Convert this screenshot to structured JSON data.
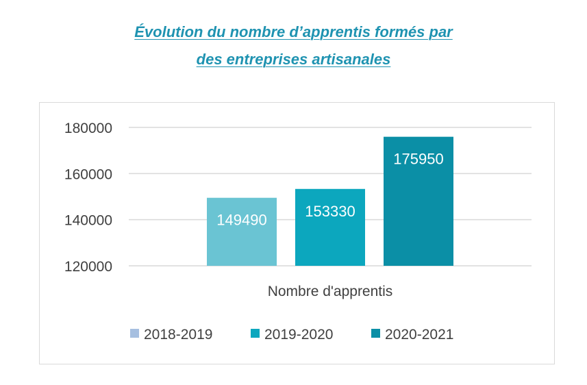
{
  "title": {
    "line1": "Évolution du nombre d’apprentis formés par",
    "line2": "des entreprises artisanales"
  },
  "chart_data": {
    "type": "bar",
    "categories": [
      "Nombre d'apprentis"
    ],
    "series": [
      {
        "name": "2018-2019",
        "values": [
          149490
        ],
        "color": "#6ac4d3"
      },
      {
        "name": "2019-2020",
        "values": [
          153330
        ],
        "color": "#0ca7be"
      },
      {
        "name": "2020-2021",
        "values": [
          175950
        ],
        "color": "#0b8fa6"
      }
    ],
    "legend_swatch_colors": [
      "#a6bfe0",
      "#0ca7be",
      "#0b8fa6"
    ],
    "ylim": [
      120000,
      180000
    ],
    "yticks": [
      120000,
      140000,
      160000,
      180000
    ],
    "xlabel": "",
    "ylabel": "",
    "grid": true,
    "legend": "bottom",
    "data_labels": true
  }
}
